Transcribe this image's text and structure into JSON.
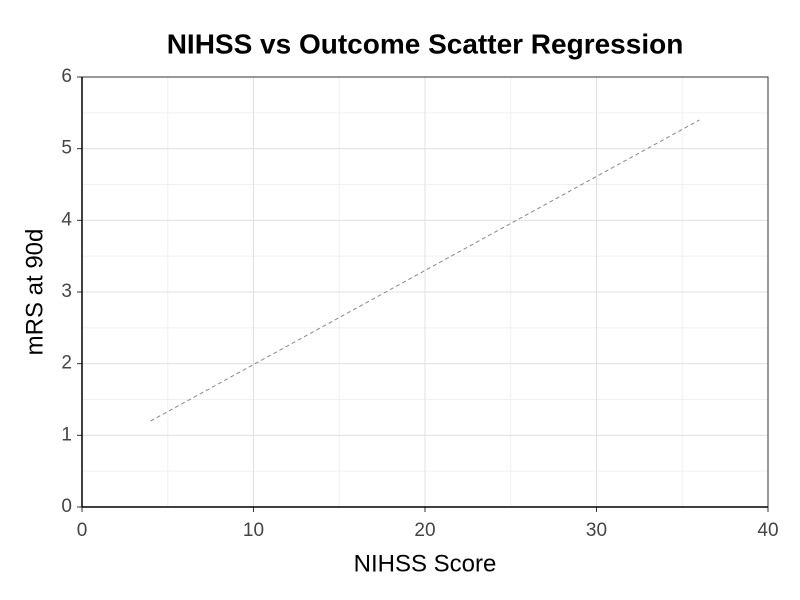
{
  "chart_data": {
    "type": "line",
    "title": "NIHSS vs Outcome Scatter Regression",
    "x_label": "NIHSS Score",
    "y_label": "mRS at 90d",
    "x": [
      4,
      36
    ],
    "series": [
      {
        "color": "#888888",
        "dashed": true,
        "values": [
          1.2,
          5.4
        ]
      }
    ],
    "xlim": [
      0,
      40
    ],
    "xticks": [
      0,
      10,
      20,
      30,
      40
    ],
    "xminorticks": [
      5,
      15,
      25,
      35
    ],
    "ylim": [
      0,
      6
    ],
    "yticks": [
      0,
      1,
      2,
      3,
      4,
      5,
      6
    ],
    "yminorticks": [
      0.5,
      1.5,
      2.5,
      3.5,
      4.5,
      5.5
    ],
    "grid": true
  }
}
